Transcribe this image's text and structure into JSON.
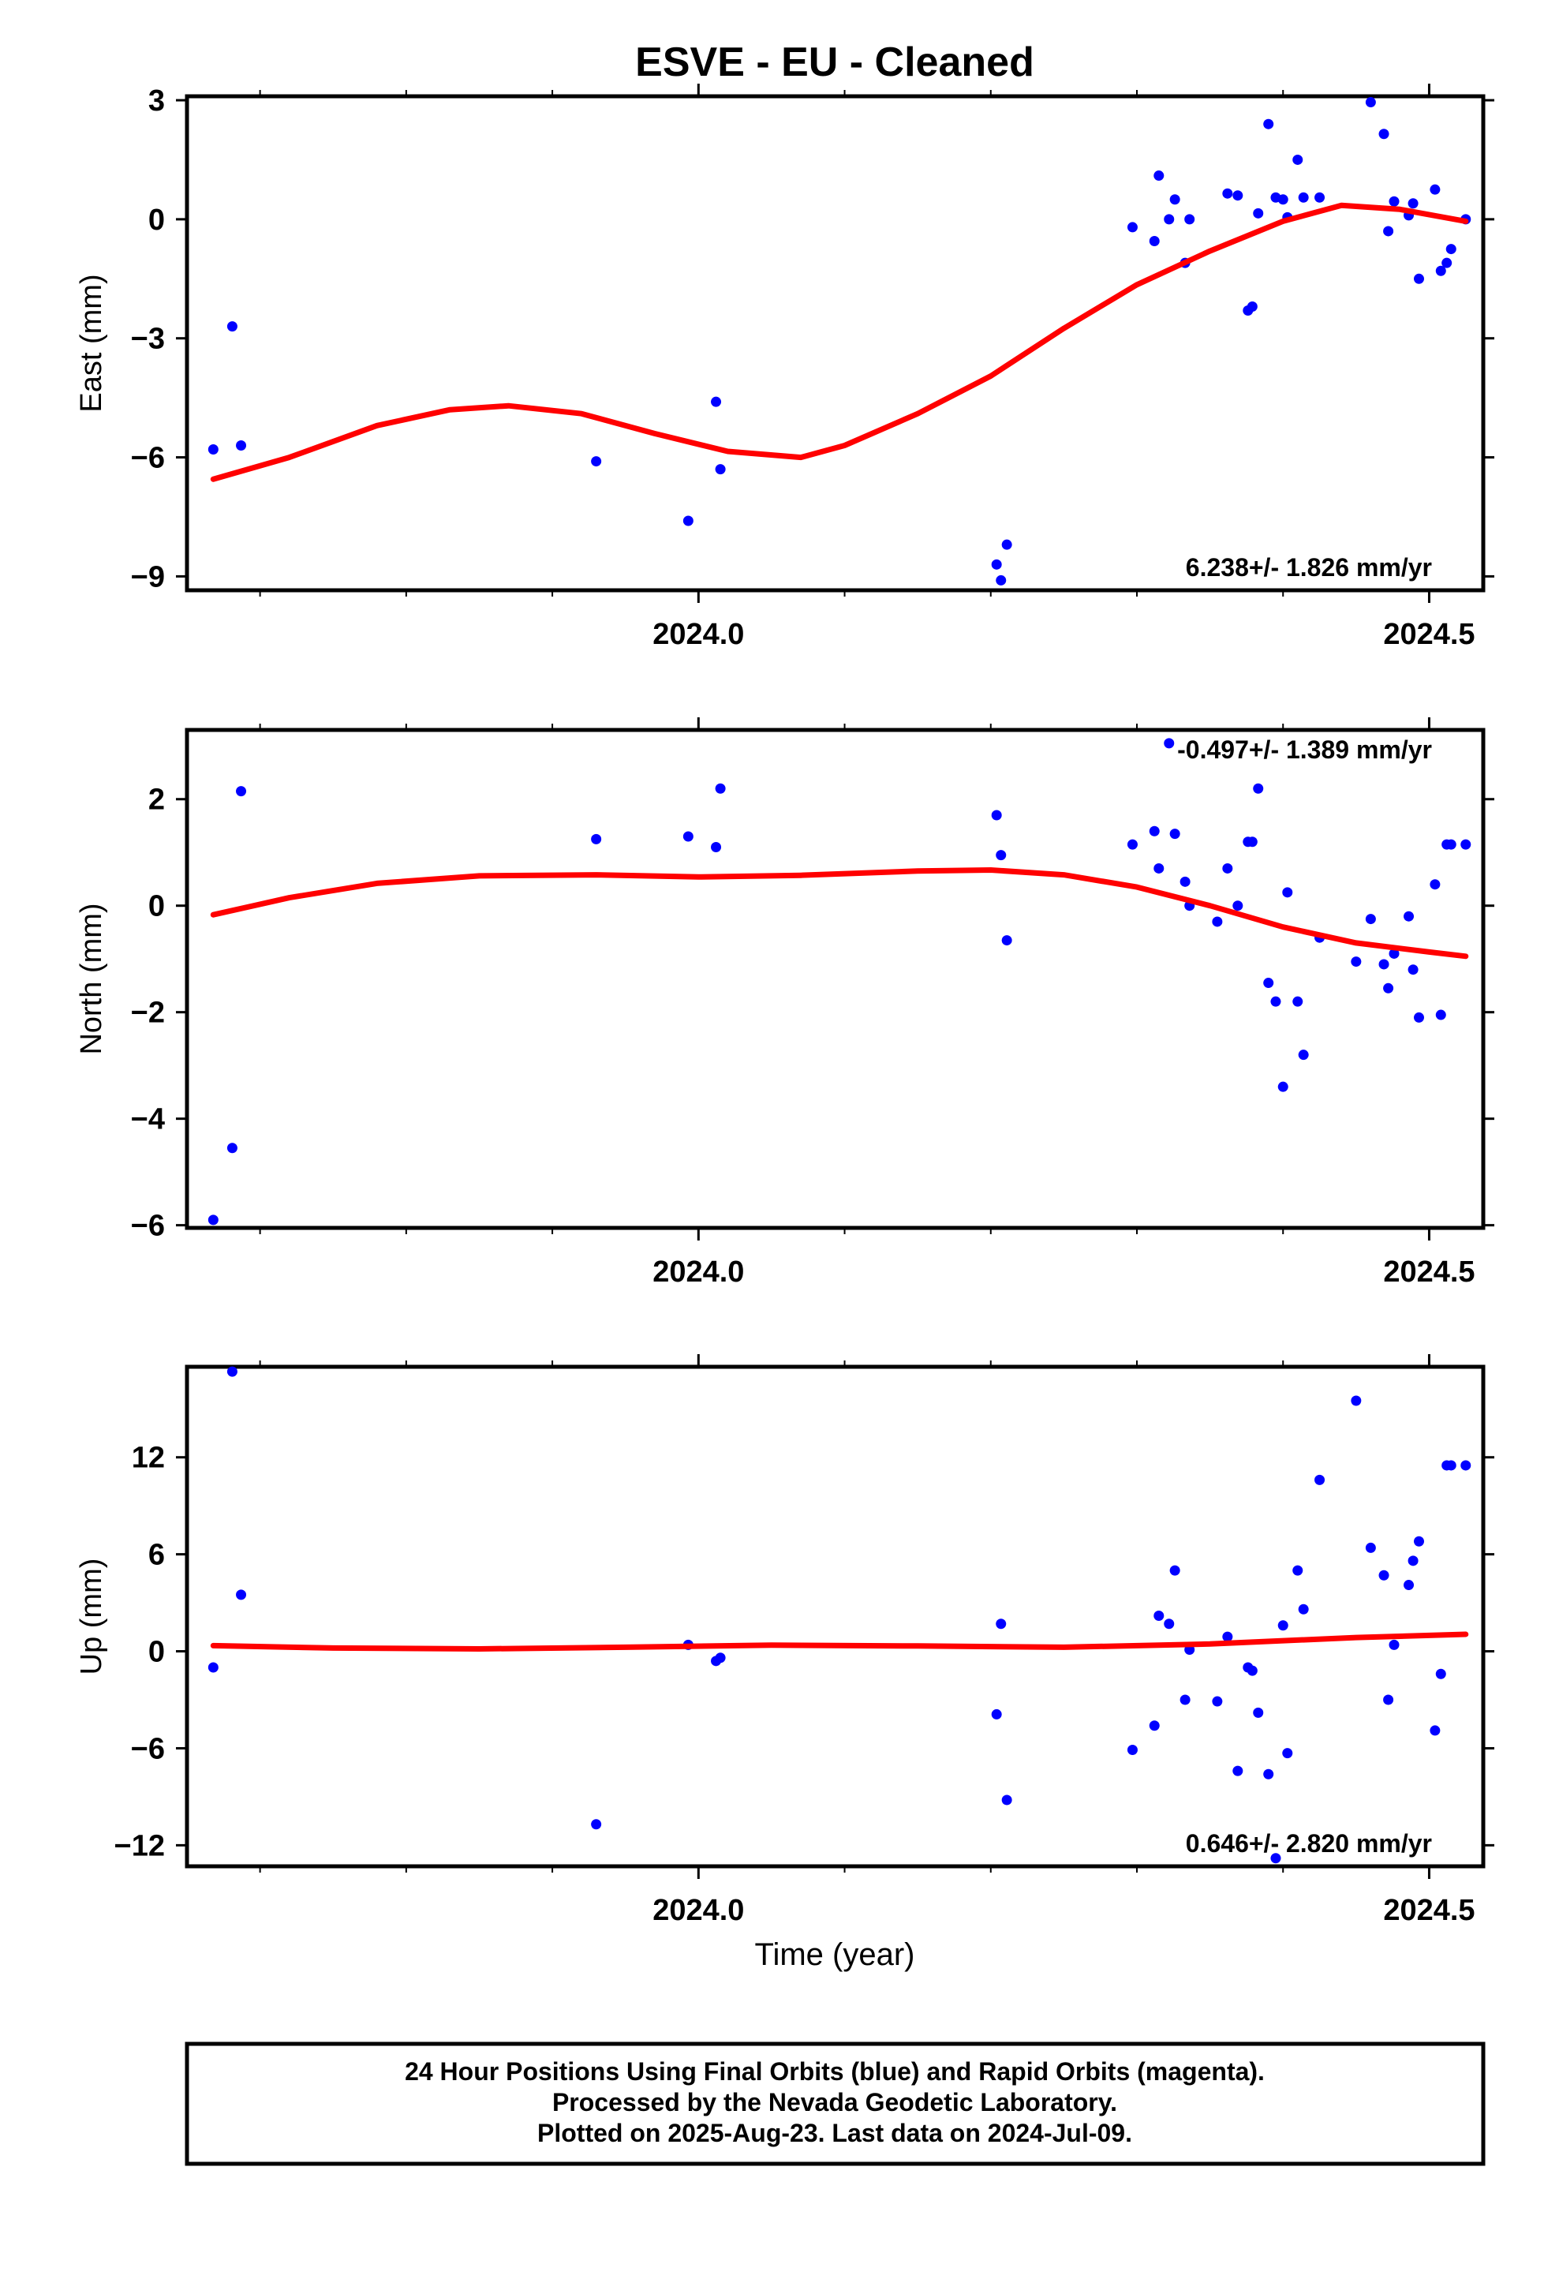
{
  "title": "ESVE  - EU - Cleaned",
  "colors": {
    "final_orbits": "#0000ff",
    "fit_curve": "#ff0000",
    "frame": "#000000"
  },
  "footer": {
    "line1": "24 Hour Positions Using Final Orbits (blue) and Rapid Orbits (magenta).",
    "line2": "Processed by the Nevada Geodetic Laboratory.",
    "line3": "Plotted on 2025-Aug-23. Last data on 2024-Jul-09."
  },
  "chart_data": [
    {
      "type": "scatter",
      "ylabel": "East (mm)",
      "xlabel": "",
      "xlim": [
        2023.65,
        2024.537
      ],
      "ylim": [
        -9.35,
        3.1
      ],
      "yticks": [
        3,
        0,
        -3,
        -6,
        -9
      ],
      "ytick_labels": [
        "3",
        "0",
        "−3",
        "−6",
        "−9"
      ],
      "xticks": [
        2024.0,
        2024.5
      ],
      "xtick_labels": [
        "2024.0",
        "2024.5"
      ],
      "rate_label": "6.238+/- 1.826 mm/yr",
      "rate_position": "bottom-right",
      "series": [
        {
          "x": [
            2023.668,
            2023.681,
            2023.687,
            2023.93,
            2023.993,
            2024.012,
            2024.015,
            2024.204,
            2024.207,
            2024.211,
            2024.297,
            2024.312,
            2024.315,
            2024.322,
            2024.326,
            2024.333,
            2024.336,
            2024.362,
            2024.369,
            2024.376,
            2024.379,
            2024.383,
            2024.39,
            2024.395,
            2024.4,
            2024.403,
            2024.41,
            2024.414,
            2024.425,
            2024.46,
            2024.469,
            2024.472,
            2024.476,
            2024.486,
            2024.489,
            2024.493,
            2024.504,
            2024.508,
            2024.512,
            2024.515,
            2024.525
          ],
          "y": [
            -5.8,
            -2.7,
            -5.7,
            -6.1,
            -7.6,
            -4.6,
            -6.3,
            -8.7,
            -9.1,
            -8.2,
            -0.2,
            -0.55,
            1.1,
            0.0,
            0.5,
            -1.1,
            0.0,
            0.65,
            0.6,
            -2.3,
            -2.2,
            0.15,
            2.4,
            0.55,
            0.5,
            0.05,
            1.5,
            0.55,
            0.55,
            2.95,
            2.15,
            -0.3,
            0.45,
            0.1,
            0.4,
            -1.5,
            0.75,
            -1.3,
            -1.1,
            -0.75,
            0.0
          ]
        }
      ],
      "fit_curve": {
        "x": [
          2023.668,
          2023.72,
          2023.78,
          2023.83,
          2023.87,
          2023.92,
          2023.97,
          2024.02,
          2024.07,
          2024.1,
          2024.15,
          2024.2,
          2024.25,
          2024.3,
          2024.35,
          2024.4,
          2024.44,
          2024.48,
          2024.525
        ],
        "y": [
          -6.55,
          -6.0,
          -5.2,
          -4.8,
          -4.7,
          -4.9,
          -5.4,
          -5.85,
          -6.0,
          -5.7,
          -4.9,
          -3.95,
          -2.75,
          -1.65,
          -0.8,
          -0.05,
          0.35,
          0.25,
          -0.05
        ]
      }
    },
    {
      "type": "scatter",
      "ylabel": "North (mm)",
      "xlabel": "",
      "xlim": [
        2023.65,
        2024.537
      ],
      "ylim": [
        -6.05,
        3.3
      ],
      "yticks": [
        2,
        0,
        -2,
        -4,
        -6
      ],
      "ytick_labels": [
        "2",
        "0",
        "−2",
        "−4",
        "−6"
      ],
      "xticks": [
        2024.0,
        2024.5
      ],
      "xtick_labels": [
        "2024.0",
        "2024.5"
      ],
      "rate_label": "-0.497+/- 1.389 mm/yr",
      "rate_position": "top-right",
      "series": [
        {
          "x": [
            2023.668,
            2023.681,
            2023.687,
            2023.93,
            2023.993,
            2024.012,
            2024.015,
            2024.204,
            2024.207,
            2024.211,
            2024.297,
            2024.312,
            2024.315,
            2024.322,
            2024.326,
            2024.333,
            2024.336,
            2024.355,
            2024.362,
            2024.369,
            2024.376,
            2024.379,
            2024.383,
            2024.39,
            2024.395,
            2024.4,
            2024.403,
            2024.41,
            2024.414,
            2024.425,
            2024.45,
            2024.46,
            2024.469,
            2024.472,
            2024.476,
            2024.486,
            2024.489,
            2024.493,
            2024.504,
            2024.508,
            2024.512,
            2024.515,
            2024.525
          ],
          "y": [
            -5.9,
            -4.55,
            2.15,
            1.25,
            1.3,
            1.1,
            2.2,
            1.7,
            0.95,
            -0.65,
            1.15,
            1.4,
            0.7,
            3.05,
            1.35,
            0.45,
            0.0,
            -0.3,
            0.7,
            0.0,
            1.2,
            1.2,
            2.2,
            -1.45,
            -1.8,
            -3.4,
            0.25,
            -1.8,
            -2.8,
            -0.6,
            -1.05,
            -0.25,
            -1.1,
            -1.55,
            -0.9,
            -0.2,
            -1.2,
            -2.1,
            0.4,
            -2.05,
            1.15,
            1.15,
            1.15
          ],
          "note": ""
        }
      ],
      "fit_curve": {
        "x": [
          2023.668,
          2023.72,
          2023.78,
          2023.85,
          2023.93,
          2024.0,
          2024.07,
          2024.15,
          2024.2,
          2024.25,
          2024.3,
          2024.35,
          2024.4,
          2024.45,
          2024.5,
          2024.525
        ],
        "y": [
          -0.17,
          0.15,
          0.42,
          0.56,
          0.58,
          0.54,
          0.57,
          0.65,
          0.67,
          0.58,
          0.35,
          0.0,
          -0.4,
          -0.7,
          -0.87,
          -0.95
        ]
      }
    },
    {
      "type": "scatter",
      "ylabel": "Up (mm)",
      "xlabel": "Time (year)",
      "xlim": [
        2023.65,
        2024.537
      ],
      "ylim": [
        -13.3,
        17.6
      ],
      "yticks": [
        12,
        6,
        0,
        -6,
        -12
      ],
      "ytick_labels": [
        "12",
        "6",
        "0",
        "−6",
        "−12"
      ],
      "xticks": [
        2024.0,
        2024.5
      ],
      "xtick_labels": [
        "2024.0",
        "2024.5"
      ],
      "rate_label": "0.646+/- 2.820 mm/yr",
      "rate_position": "bottom-right",
      "series": [
        {
          "x": [
            2023.668,
            2023.681,
            2023.687,
            2023.93,
            2023.993,
            2024.012,
            2024.015,
            2024.204,
            2024.207,
            2024.211,
            2024.297,
            2024.312,
            2024.315,
            2024.322,
            2024.326,
            2024.333,
            2024.336,
            2024.355,
            2024.362,
            2024.369,
            2024.376,
            2024.379,
            2024.383,
            2024.39,
            2024.395,
            2024.4,
            2024.403,
            2024.41,
            2024.414,
            2024.425,
            2024.45,
            2024.46,
            2024.469,
            2024.472,
            2024.476,
            2024.486,
            2024.489,
            2024.493,
            2024.504,
            2024.508,
            2024.512,
            2024.515,
            2024.525
          ],
          "y": [
            -1.0,
            17.3,
            3.5,
            -10.7,
            0.4,
            -0.6,
            -0.4,
            -3.9,
            1.7,
            -9.2,
            -6.1,
            -4.6,
            2.2,
            1.7,
            5.0,
            -3.0,
            0.1,
            -3.1,
            0.9,
            -7.4,
            -1.0,
            -1.2,
            -3.8,
            -7.6,
            -12.8,
            1.6,
            -6.3,
            5.0,
            2.6,
            10.6,
            15.5,
            6.4,
            4.7,
            -3.0,
            0.4,
            4.1,
            5.6,
            6.8,
            -4.9,
            -1.4,
            11.5,
            11.5,
            11.5
          ]
        }
      ],
      "fit_curve": {
        "x": [
          2023.668,
          2023.75,
          2023.85,
          2023.95,
          2024.05,
          2024.15,
          2024.25,
          2024.35,
          2024.45,
          2024.525
        ],
        "y": [
          0.35,
          0.2,
          0.15,
          0.25,
          0.38,
          0.33,
          0.25,
          0.45,
          0.85,
          1.05
        ]
      }
    }
  ]
}
